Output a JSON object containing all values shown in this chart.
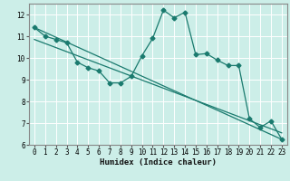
{
  "xlabel": "Humidex (Indice chaleur)",
  "bg_color": "#cceee8",
  "line_color": "#1a7a6e",
  "grid_color": "#ffffff",
  "xlim": [
    -0.5,
    23.5
  ],
  "ylim": [
    6,
    12.5
  ],
  "xticks": [
    0,
    1,
    2,
    3,
    4,
    5,
    6,
    7,
    8,
    9,
    10,
    11,
    12,
    13,
    14,
    15,
    16,
    17,
    18,
    19,
    20,
    21,
    22,
    23
  ],
  "yticks": [
    6,
    7,
    8,
    9,
    10,
    11,
    12
  ],
  "line1_x": [
    0,
    1,
    2,
    3,
    4,
    5,
    6,
    7,
    8,
    9,
    10,
    11,
    12,
    13,
    14,
    15,
    16,
    17,
    18,
    19,
    20,
    21,
    22,
    23
  ],
  "line1_y": [
    11.4,
    11.0,
    10.85,
    10.7,
    9.8,
    9.55,
    9.4,
    8.85,
    8.85,
    9.15,
    10.1,
    10.9,
    12.2,
    11.85,
    12.1,
    10.15,
    10.2,
    9.9,
    9.65,
    9.65,
    7.2,
    6.8,
    7.1,
    6.25
  ],
  "line2_x": [
    0,
    23
  ],
  "line2_y": [
    11.4,
    6.25
  ],
  "line3_x": [
    0,
    23
  ],
  "line3_y": [
    10.85,
    6.55
  ],
  "marker_size": 2.5,
  "linewidth": 0.9,
  "tick_fontsize": 5.5
}
